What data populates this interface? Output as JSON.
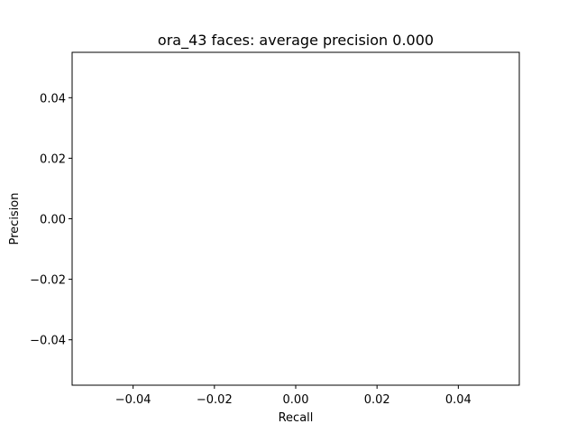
{
  "chart_data": {
    "type": "line",
    "title": "ora_43 faces: average precision 0.000",
    "xlabel": "Recall",
    "ylabel": "Precision",
    "xlim": [
      -0.055,
      0.055
    ],
    "ylim": [
      -0.055,
      0.055
    ],
    "x_ticks": [
      -0.04,
      -0.02,
      0.0,
      0.02,
      0.04
    ],
    "x_tick_labels": [
      "−0.04",
      "−0.02",
      "0.00",
      "0.02",
      "0.04"
    ],
    "y_ticks": [
      -0.04,
      -0.02,
      0.0,
      0.02,
      0.04
    ],
    "y_tick_labels": [
      "−0.04",
      "−0.02",
      "0.00",
      "0.02",
      "0.04"
    ],
    "grid": false,
    "series": [
      {
        "x": [],
        "y": []
      }
    ],
    "colors": {
      "axes": "#000000",
      "background": "#ffffff"
    }
  }
}
